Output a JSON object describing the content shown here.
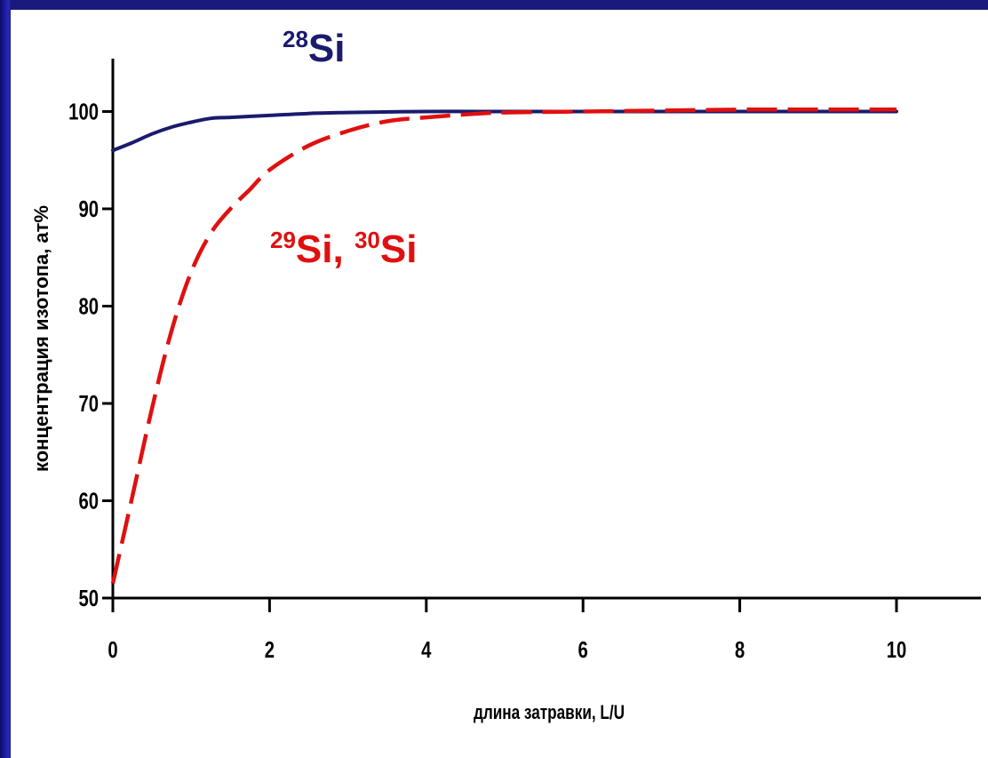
{
  "colors": {
    "slide_background": "#1a1a7e",
    "panel_background": "#ffffff",
    "series_si28": "#1a1a6e",
    "series_si29_30": "#e01010"
  },
  "chart_data": {
    "type": "line",
    "title": "",
    "xlabel": "длина затравки, L/U",
    "ylabel": "концентрация изотопа, ат%",
    "xlim": [
      0,
      11
    ],
    "ylim": [
      50,
      105
    ],
    "x_ticks": [
      0,
      2,
      4,
      6,
      8,
      10
    ],
    "y_ticks": [
      50,
      60,
      70,
      80,
      90,
      100
    ],
    "x_tick_labels": [
      "0",
      "2",
      "4",
      "6",
      "8",
      "10"
    ],
    "y_tick_labels": [
      "50",
      "60",
      "70",
      "80",
      "90",
      "100"
    ],
    "grid": false,
    "legend": "none",
    "series": [
      {
        "label_main": "Si",
        "label_sup": "28",
        "style": "solid",
        "color": "#1a1a6e",
        "x": [
          0,
          0.25,
          0.5,
          0.75,
          1.0,
          1.25,
          1.5,
          2,
          2.5,
          3,
          4,
          5,
          6,
          8,
          10
        ],
        "y": [
          96.0,
          96.8,
          97.7,
          98.4,
          98.9,
          99.3,
          99.4,
          99.6,
          99.8,
          99.9,
          100,
          100,
          100,
          100,
          100
        ]
      },
      {
        "label_parts": [
          {
            "sup": "29",
            "main": "Si, "
          },
          {
            "sup": "30",
            "main": "Si"
          }
        ],
        "style": "dashed",
        "color": "#e01010",
        "x": [
          0,
          0.25,
          0.5,
          0.75,
          1.0,
          1.25,
          1.5,
          1.75,
          2.0,
          2.5,
          3.0,
          3.5,
          4.0,
          4.5,
          5,
          6,
          7,
          8,
          9,
          10
        ],
        "y": [
          51.5,
          60.5,
          69.5,
          77.5,
          83.5,
          87.5,
          90.0,
          92.0,
          94.0,
          96.5,
          98.0,
          99.0,
          99.4,
          99.7,
          99.9,
          100.0,
          100.1,
          100.2,
          100.2,
          100.2
        ]
      }
    ]
  }
}
